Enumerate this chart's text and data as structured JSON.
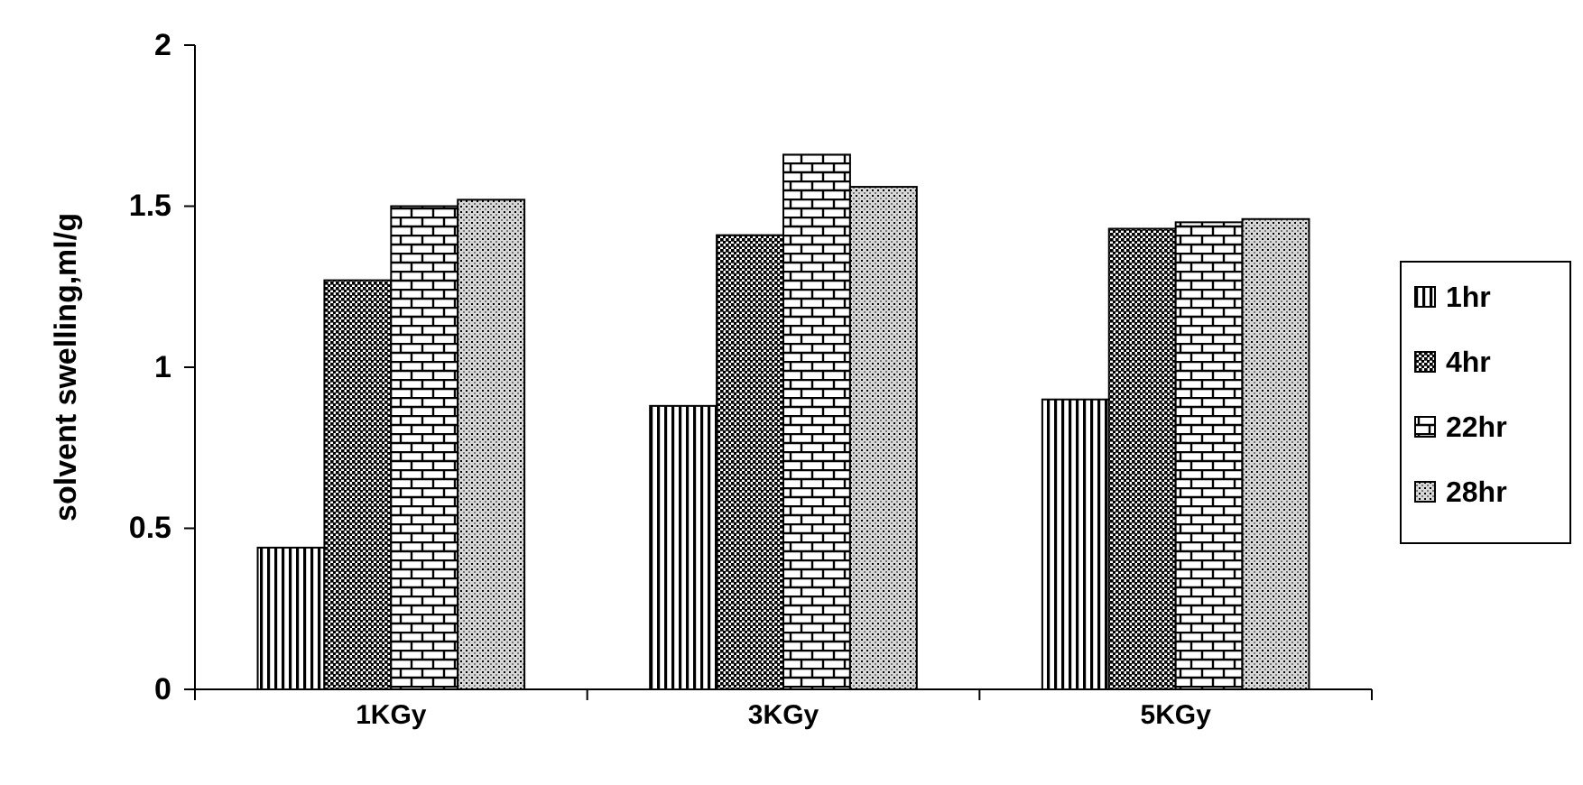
{
  "chart_data": {
    "type": "bar",
    "ylabel": "solvent swelling,ml/g",
    "categories": [
      "1KGy",
      "3KGy",
      "5KGy"
    ],
    "series": [
      {
        "name": "1hr",
        "color": "#000000",
        "values": [
          0.44,
          0.88,
          0.9
        ]
      },
      {
        "name": "4hr",
        "color": "#000000",
        "values": [
          1.27,
          1.41,
          1.43
        ]
      },
      {
        "name": "22hr",
        "color": "#000000",
        "values": [
          1.5,
          1.66,
          1.45
        ]
      },
      {
        "name": "28hr",
        "color": "#000000",
        "values": [
          1.52,
          1.56,
          1.46
        ]
      }
    ],
    "ylim": [
      0,
      2
    ],
    "yticks": [
      0,
      0.5,
      1,
      1.5,
      2
    ],
    "grid": false,
    "legend": "right"
  }
}
